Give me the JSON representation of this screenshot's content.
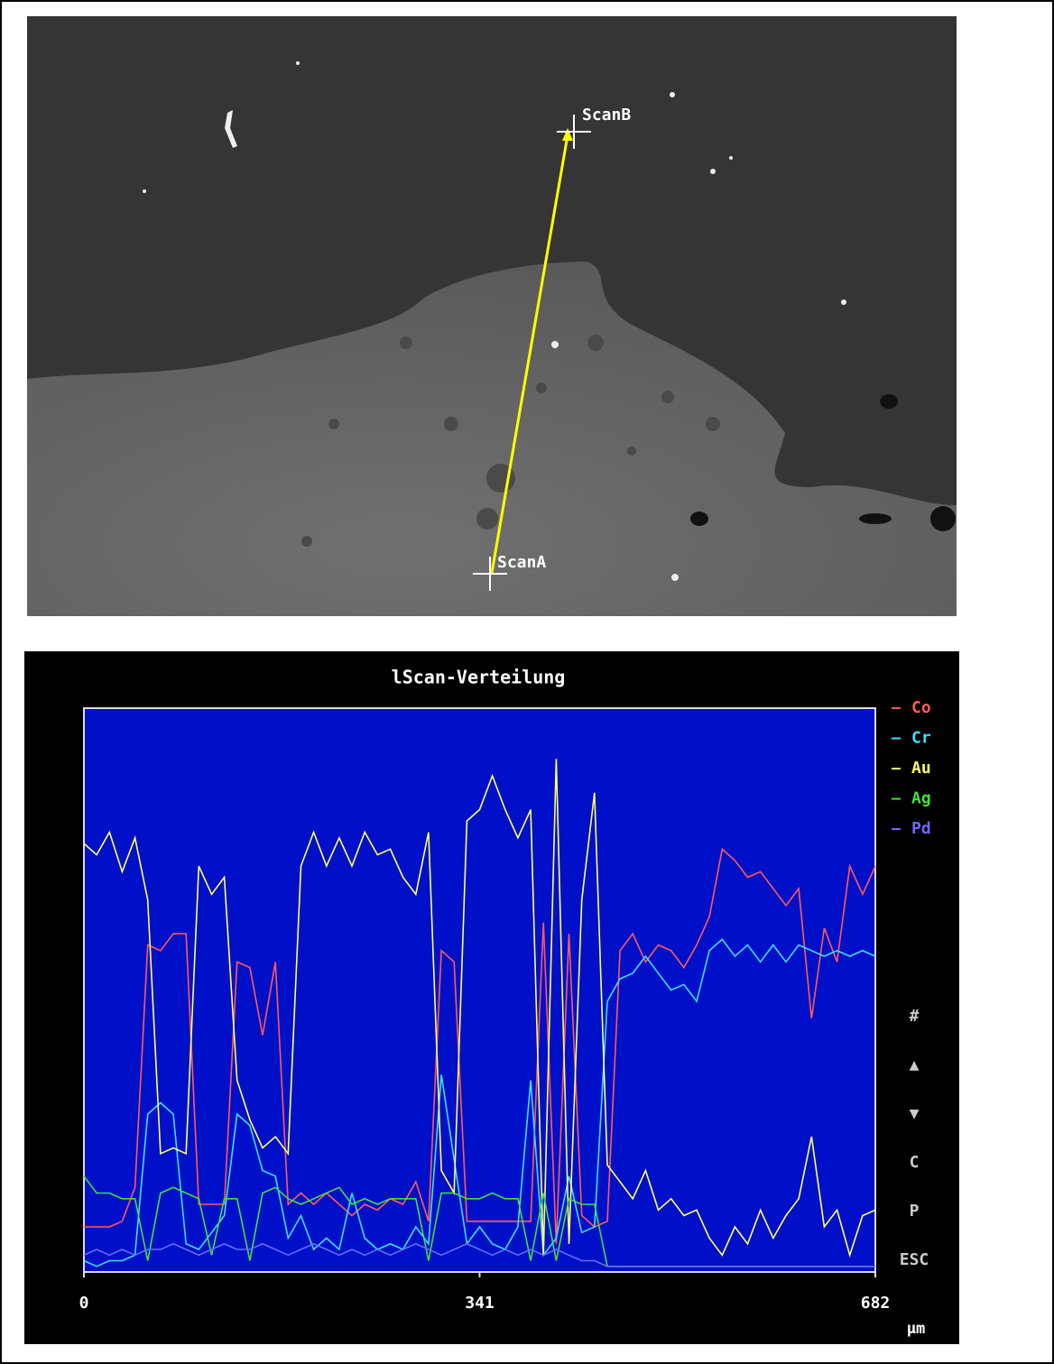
{
  "micrograph": {
    "labels": [
      "ScanB",
      "ScanA"
    ]
  },
  "chart_data": {
    "type": "line",
    "title": "lScan-Verteilung",
    "x": [
      0,
      11,
      22,
      33,
      44,
      55,
      66,
      77,
      88,
      99,
      110,
      121,
      132,
      143,
      154,
      165,
      176,
      187,
      198,
      209,
      220,
      231,
      242,
      253,
      264,
      275,
      286,
      297,
      308,
      319,
      330,
      341,
      352,
      363,
      374,
      385,
      396,
      407,
      418,
      429,
      440,
      451,
      462,
      473,
      484,
      495,
      506,
      517,
      528,
      539,
      550,
      561,
      572,
      583,
      594,
      605,
      616,
      627,
      638,
      649,
      660,
      671,
      682
    ],
    "xlim": [
      0,
      682
    ],
    "xticks": [
      0,
      341,
      682
    ],
    "x_label": "µm",
    "ylim": [
      0,
      100
    ],
    "grid": false,
    "series": [
      {
        "name": "Co",
        "color": "#ff5a5a",
        "values": [
          8,
          8,
          8,
          9,
          15,
          58,
          57,
          60,
          60,
          12,
          12,
          12,
          55,
          54,
          42,
          55,
          12,
          14,
          12,
          14,
          12,
          10,
          12,
          11,
          13,
          12,
          16,
          9,
          57,
          55,
          9,
          9,
          9,
          9,
          9,
          9,
          62,
          5,
          60,
          10,
          8,
          9,
          57,
          60,
          55,
          58,
          57,
          54,
          58,
          63,
          75,
          73,
          70,
          71,
          68,
          65,
          68,
          45,
          61,
          55,
          72,
          67,
          72
        ]
      },
      {
        "name": "Cr",
        "color": "#40dcff",
        "values": [
          2,
          1,
          2,
          2,
          3,
          28,
          30,
          28,
          5,
          4,
          7,
          10,
          28,
          26,
          18,
          17,
          6,
          10,
          4,
          6,
          4,
          14,
          6,
          4,
          5,
          4,
          8,
          5,
          35,
          20,
          5,
          8,
          5,
          4,
          8,
          34,
          3,
          6,
          17,
          7,
          8,
          48,
          52,
          53,
          56,
          53,
          50,
          51,
          48,
          57,
          59,
          56,
          58,
          55,
          58,
          55,
          58,
          57,
          56,
          57,
          56,
          57,
          56
        ]
      },
      {
        "name": "Au",
        "color": "#ffff66",
        "values": [
          76,
          74,
          78,
          71,
          77,
          66,
          21,
          22,
          21,
          72,
          67,
          70,
          34,
          27,
          22,
          24,
          21,
          72,
          78,
          72,
          77,
          72,
          78,
          74,
          75,
          70,
          67,
          78,
          18,
          14,
          80,
          82,
          88,
          82,
          77,
          82,
          3,
          91,
          5,
          66,
          85,
          19,
          16,
          13,
          18,
          11,
          13,
          10,
          11,
          6,
          3,
          8,
          5,
          11,
          6,
          10,
          13,
          24,
          8,
          11,
          3,
          10,
          11
        ]
      },
      {
        "name": "Ag",
        "color": "#40e040",
        "values": [
          17,
          14,
          14,
          13,
          13,
          2,
          14,
          15,
          14,
          13,
          3,
          13,
          13,
          2,
          14,
          15,
          13,
          12,
          13,
          14,
          15,
          12,
          13,
          12,
          13,
          13,
          13,
          2,
          14,
          14,
          13,
          13,
          14,
          13,
          13,
          2,
          14,
          2,
          13,
          12,
          12,
          1,
          1,
          1,
          1,
          1,
          1,
          1,
          1,
          1,
          1,
          1,
          1,
          1,
          1,
          1,
          1,
          1,
          1,
          1,
          1,
          1,
          1
        ]
      },
      {
        "name": "Pd",
        "color": "#6a6aff",
        "values": [
          3,
          4,
          3,
          4,
          3,
          4,
          4,
          5,
          4,
          3,
          4,
          5,
          4,
          4,
          5,
          4,
          3,
          4,
          5,
          4,
          3,
          4,
          3,
          4,
          3,
          4,
          5,
          4,
          3,
          4,
          5,
          4,
          3,
          4,
          3,
          4,
          3,
          4,
          3,
          2,
          2,
          1,
          1,
          1,
          1,
          1,
          1,
          1,
          1,
          1,
          1,
          1,
          1,
          1,
          1,
          1,
          1,
          1,
          1,
          1,
          1,
          1,
          1
        ]
      }
    ],
    "controls": [
      "#",
      "▲",
      "▼",
      "C",
      "P",
      "ESC"
    ]
  }
}
